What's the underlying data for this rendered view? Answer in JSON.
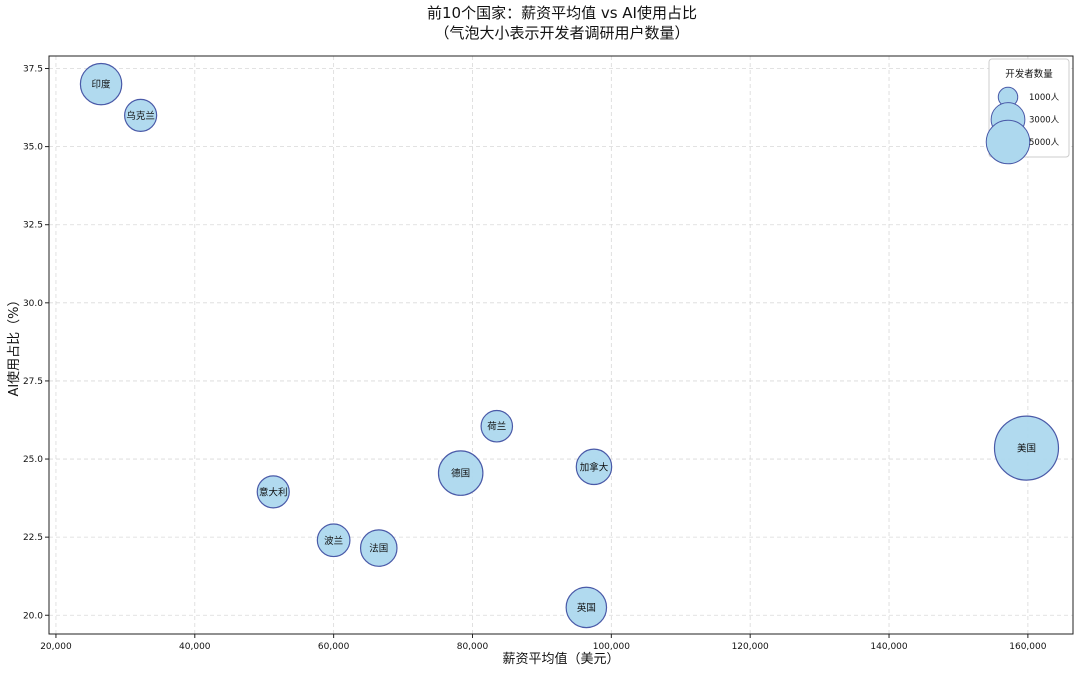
{
  "chart_data": {
    "type": "scatter",
    "title": "前10个国家：薪资平均值 vs AI使用占比",
    "subtitle": "（气泡大小表示开发者调研用户数量）",
    "xlabel": "薪资平均值（美元）",
    "ylabel": "AI使用占比（%）",
    "xlim": [
      19000,
      166500
    ],
    "ylim": [
      19.4,
      37.9
    ],
    "x_ticks": [
      20000,
      40000,
      60000,
      80000,
      100000,
      120000,
      140000,
      160000
    ],
    "x_tick_labels": [
      "20,000",
      "40,000",
      "60,000",
      "80,000",
      "100,000",
      "120,000",
      "140,000",
      "160,000"
    ],
    "y_ticks": [
      20.0,
      22.5,
      25.0,
      27.5,
      30.0,
      32.5,
      35.0,
      37.5
    ],
    "y_tick_labels": [
      "20.0",
      "22.5",
      "25.0",
      "27.5",
      "30.0",
      "32.5",
      "35.0",
      "37.5"
    ],
    "grid": true,
    "bubble_color": "#add8ee",
    "bubble_edge_color": "#4a5aa8",
    "points": [
      {
        "label": "印度",
        "x": 26500,
        "y": 37.0,
        "size": 4500
      },
      {
        "label": "乌克兰",
        "x": 32200,
        "y": 36.0,
        "size": 2700
      },
      {
        "label": "荷兰",
        "x": 83500,
        "y": 26.05,
        "size": 2600
      },
      {
        "label": "美国",
        "x": 159800,
        "y": 25.35,
        "size": 10800
      },
      {
        "label": "加拿大",
        "x": 97500,
        "y": 24.75,
        "size": 3300
      },
      {
        "label": "德国",
        "x": 78300,
        "y": 24.55,
        "size": 5200
      },
      {
        "label": "意大利",
        "x": 51300,
        "y": 23.95,
        "size": 2700
      },
      {
        "label": "波兰",
        "x": 60000,
        "y": 22.4,
        "size": 2800
      },
      {
        "label": "法国",
        "x": 66500,
        "y": 22.15,
        "size": 3500
      },
      {
        "label": "英国",
        "x": 96400,
        "y": 20.25,
        "size": 4300
      }
    ],
    "legend": {
      "title": "开发者数量",
      "position": "top-right",
      "items": [
        {
          "label": "1000人",
          "size": 1000
        },
        {
          "label": "3000人",
          "size": 3000
        },
        {
          "label": "5000人",
          "size": 5000
        }
      ]
    }
  }
}
